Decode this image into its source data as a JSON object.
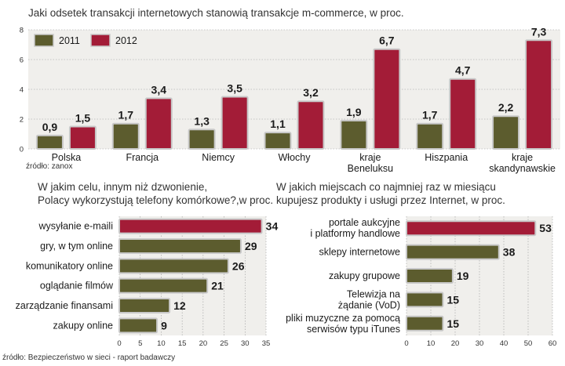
{
  "colors": {
    "c2011": "#5c5c2e",
    "c2012": "#a31c37",
    "plot_bg": "#f0efec",
    "grid": "#9a9a9a",
    "bar_stroke": "#c8c8c8"
  },
  "chart_data": [
    {
      "type": "bar",
      "title": "Jaki odsetek transakcji internetowych stanowią transakcje m-commerce, w proc.",
      "categories": [
        [
          "Polska"
        ],
        [
          "Francja"
        ],
        [
          "Niemcy"
        ],
        [
          "Włochy"
        ],
        [
          "kraje",
          "Beneluksu"
        ],
        [
          "Hiszpania"
        ],
        [
          "kraje",
          "skandynawskie"
        ]
      ],
      "series": [
        {
          "name": "2011",
          "values": [
            0.9,
            1.7,
            1.3,
            1.1,
            1.9,
            1.7,
            2.2
          ],
          "labels": [
            "0,9",
            "1,7",
            "1,3",
            "1,1",
            "1,9",
            "1,7",
            "2,2"
          ]
        },
        {
          "name": "2012",
          "values": [
            1.5,
            3.4,
            3.5,
            3.2,
            6.7,
            4.7,
            7.3
          ],
          "labels": [
            "1,5",
            "3,4",
            "3,5",
            "3,2",
            "6,7",
            "4,7",
            "7,3"
          ]
        }
      ],
      "ylim": [
        0,
        8
      ],
      "yticks": [
        0,
        2,
        4,
        6,
        8
      ],
      "legend": "top-left",
      "source": "źródło: zanox"
    },
    {
      "type": "bar",
      "orientation": "horizontal",
      "title": [
        "W jakim celu, innym niż dzwonienie,",
        "Polacy wykorzystują telefony komórkowe?,w proc."
      ],
      "categories": [
        [
          "wysyłanie e-maili"
        ],
        [
          "gry, w tym online"
        ],
        [
          "komunikatory online"
        ],
        [
          "oglądanie filmów"
        ],
        [
          "zarządzanie finansami"
        ],
        [
          "zakupy online"
        ]
      ],
      "values": [
        34,
        29,
        26,
        21,
        12,
        9
      ],
      "highlight_index": 0,
      "xlim": [
        0,
        35
      ],
      "xticks": [
        0,
        5,
        10,
        15,
        20,
        25,
        30,
        35
      ]
    },
    {
      "type": "bar",
      "orientation": "horizontal",
      "title": [
        "W jakich miejscach co najmniej raz w miesiącu",
        "kupujesz produkty i usługi przez Internet, w proc."
      ],
      "categories": [
        [
          "portale aukcyjne",
          "i platformy handlowe"
        ],
        [
          "sklepy internetowe"
        ],
        [
          "zakupy grupowe"
        ],
        [
          "Telewizja na",
          "żądanie (VoD)"
        ],
        [
          "pliki muzyczne za pomocą",
          "serwisów typu iTunes"
        ]
      ],
      "values": [
        53,
        38,
        19,
        15,
        15
      ],
      "highlight_index": 0,
      "xlim": [
        0,
        60
      ],
      "xticks": [
        0,
        10,
        20,
        30,
        40,
        50,
        60
      ]
    }
  ],
  "footer": {
    "source": "źródło: Bezpieczeństwo w sieci - raport badawczy"
  }
}
